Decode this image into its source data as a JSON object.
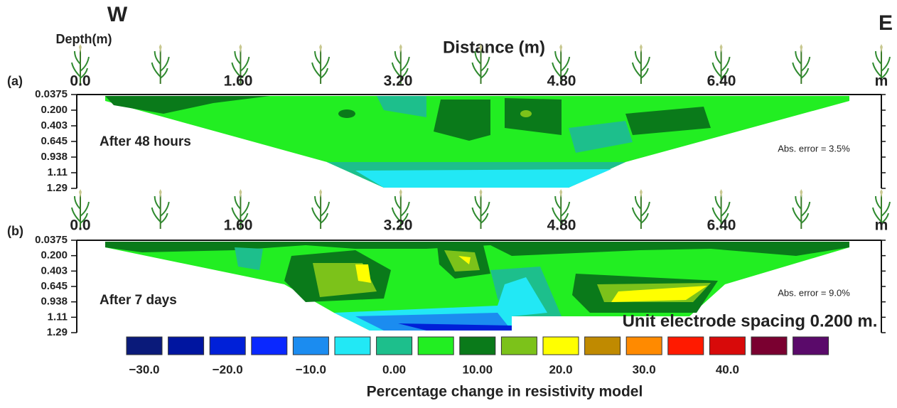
{
  "header": {
    "west": "W",
    "east": "E",
    "depth_label": "Depth(m)",
    "x_label": "Distance (m)"
  },
  "panels": [
    {
      "tag": "(a)",
      "caption": "After 48 hours",
      "error": "Abs. error = 3.5%",
      "xticks": [
        "0.0",
        "1.60",
        "3.20",
        "4.80",
        "6.40"
      ],
      "x_unit": "m",
      "depth_ticks": [
        "0.0375",
        "0.200",
        "0.403",
        "0.645",
        "0.938",
        "1.11",
        "1.29"
      ]
    },
    {
      "tag": "(b)",
      "caption": "After 7 days",
      "error": "Abs. error = 9.0%",
      "xticks": [
        "0.0",
        "1.60",
        "3.20",
        "4.80",
        "6.40"
      ],
      "x_unit": "m",
      "depth_ticks": [
        "0.0375",
        "0.200",
        "0.403",
        "0.645",
        "0.938",
        "1.11",
        "1.29"
      ]
    }
  ],
  "spacing_note": "Unit electrode spacing 0.200 m.",
  "colorbar": {
    "title": "Percentage change in resistivity model",
    "colors": [
      "#0a1a7a",
      "#0015a0",
      "#0020d8",
      "#0a28ff",
      "#1b8cf0",
      "#22e8f5",
      "#1dbf8c",
      "#22ee22",
      "#0a7a1a",
      "#7cc21a",
      "#ffff00",
      "#c08a00",
      "#ff8a00",
      "#ff1a00",
      "#d80a0a",
      "#7a0030",
      "#5a0a6a"
    ],
    "labels": [
      "−30.0",
      "−20.0",
      "−10.0",
      "0.00",
      "10.00",
      "20.0",
      "30.0",
      "40.0"
    ]
  }
}
